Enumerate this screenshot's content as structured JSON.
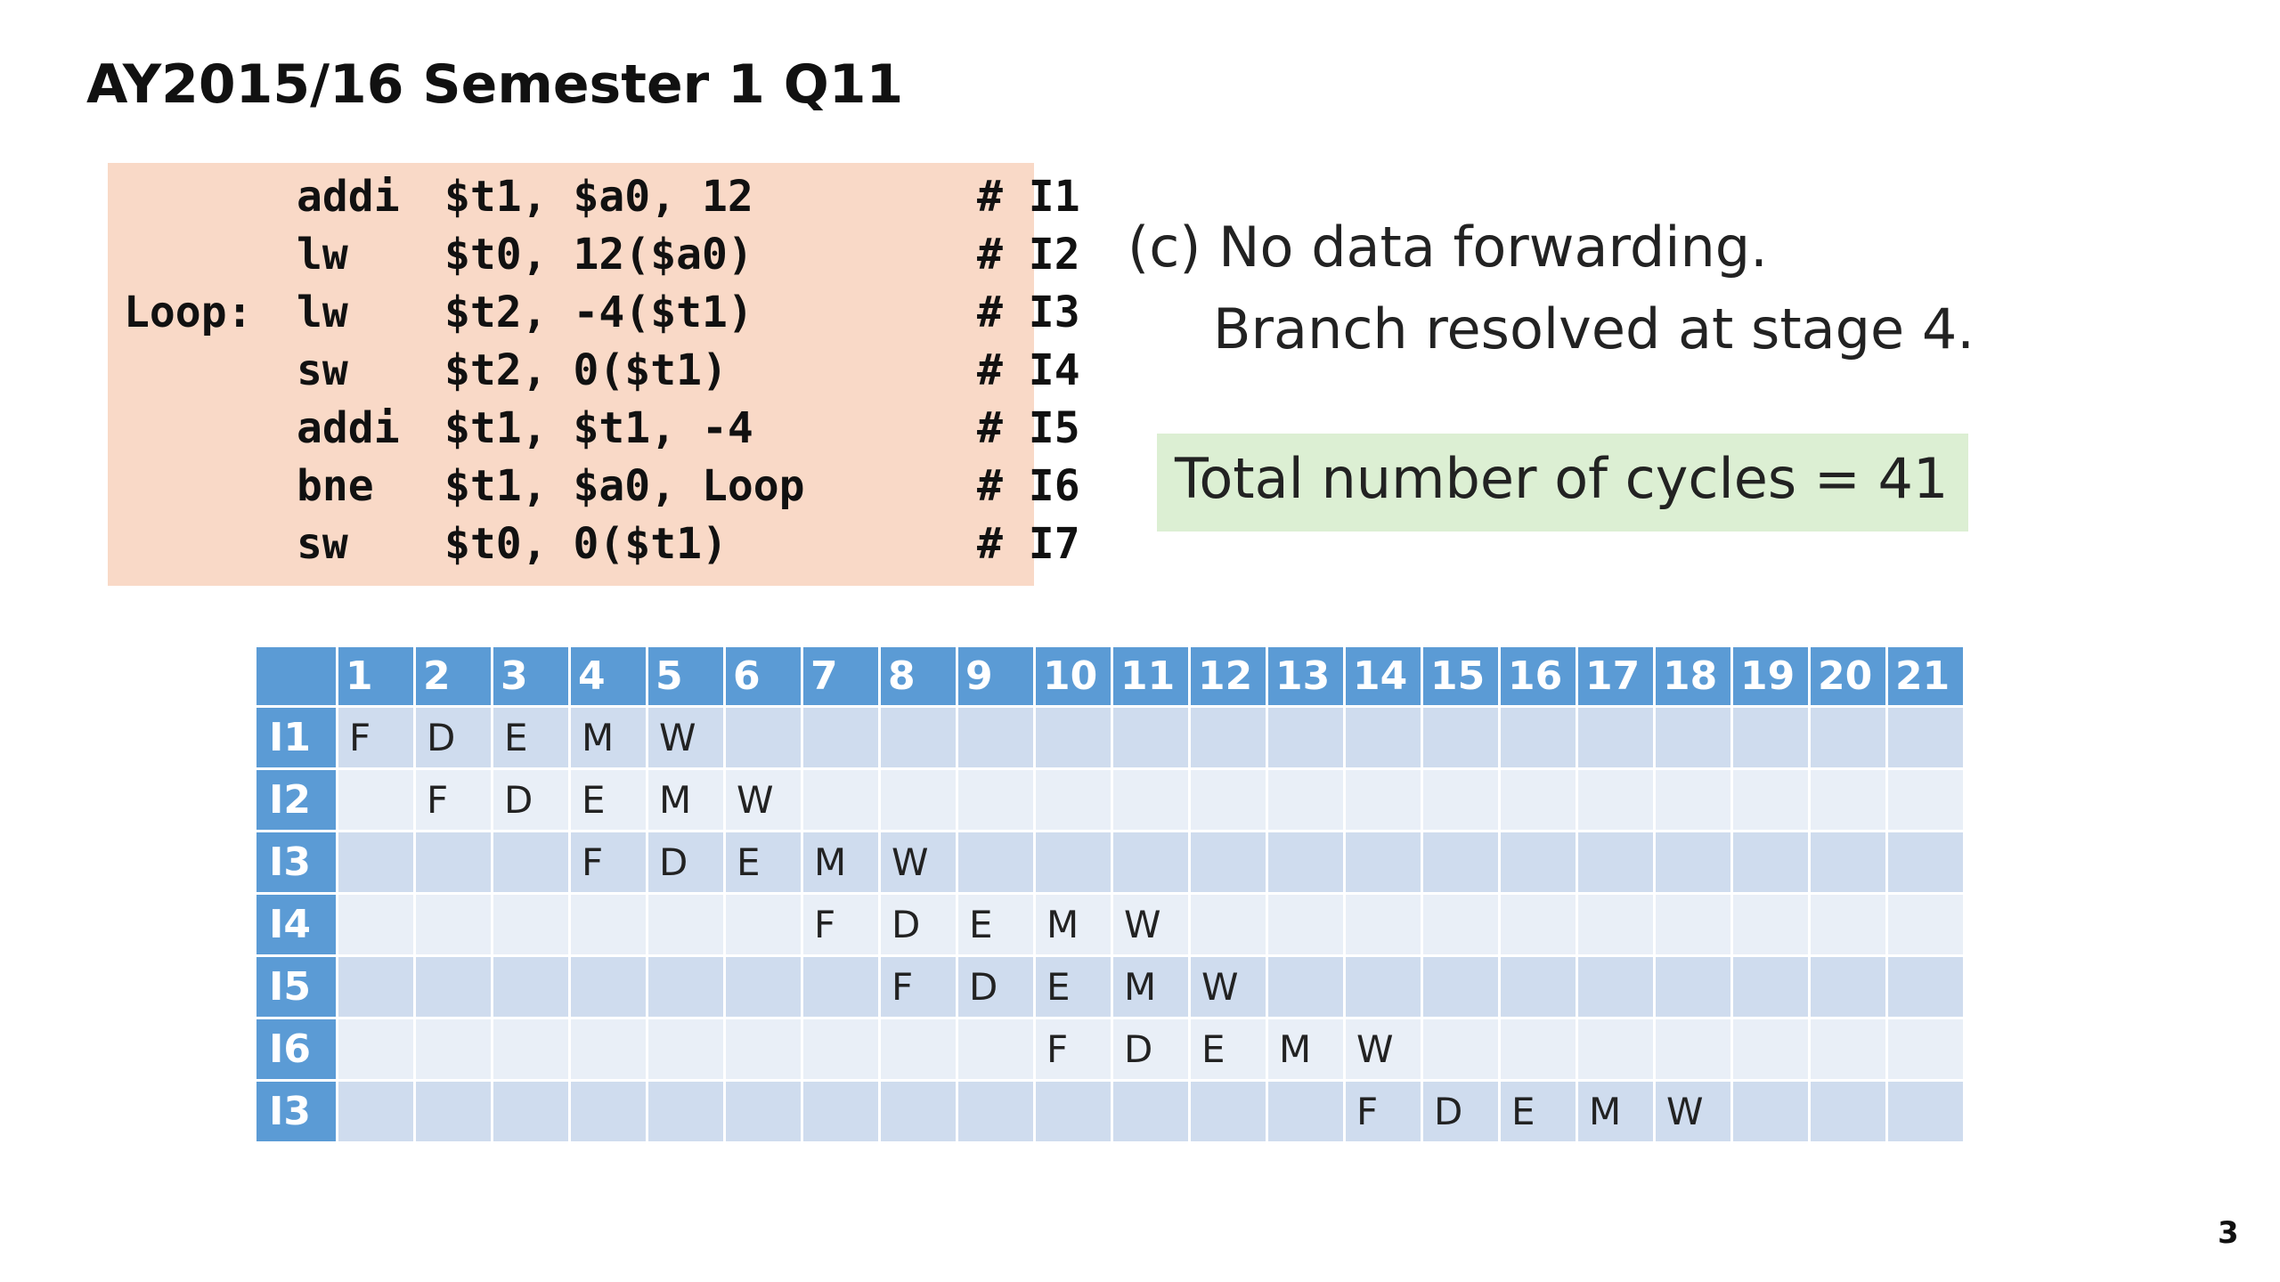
{
  "slide": {
    "title": "AY2015/16 Semester 1 Q11",
    "page_number": "3",
    "code": [
      {
        "label": "",
        "op": "addi",
        "args": "$t1, $a0, 12",
        "comment": "# I1"
      },
      {
        "label": "",
        "op": "lw",
        "args": "$t0, 12($a0)",
        "comment": "# I2"
      },
      {
        "label": "Loop:",
        "op": "lw",
        "args": "$t2, -4($t1)",
        "comment": "# I3"
      },
      {
        "label": "",
        "op": "sw",
        "args": "$t2, 0($t1)",
        "comment": "# I4"
      },
      {
        "label": "",
        "op": "addi",
        "args": "$t1, $t1, -4",
        "comment": "# I5"
      },
      {
        "label": "",
        "op": "bne",
        "args": "$t1, $a0, Loop",
        "comment": "# I6"
      },
      {
        "label": "",
        "op": "sw",
        "args": "$t0, 0($t1)",
        "comment": "# I7"
      }
    ],
    "note": {
      "line1": "(c) No data forwarding.",
      "line2": "Branch resolved at stage 4."
    },
    "total": "Total number of cycles = 41",
    "colors": {
      "code_bg": "#f9d9c7",
      "total_bg": "#dcefd3",
      "table_header": "#5b9bd5",
      "row_dark": "#cfdcee",
      "row_light": "#e9eff7"
    },
    "table": {
      "columns": [
        "1",
        "2",
        "3",
        "4",
        "5",
        "6",
        "7",
        "8",
        "9",
        "10",
        "11",
        "12",
        "13",
        "14",
        "15",
        "16",
        "17",
        "18",
        "19",
        "20",
        "21"
      ],
      "rows": [
        {
          "label": "I1",
          "cells": [
            "F",
            "D",
            "E",
            "M",
            "W",
            "",
            "",
            "",
            "",
            "",
            "",
            "",
            "",
            "",
            "",
            "",
            "",
            "",
            "",
            "",
            ""
          ]
        },
        {
          "label": "I2",
          "cells": [
            "",
            "F",
            "D",
            "E",
            "M",
            "W",
            "",
            "",
            "",
            "",
            "",
            "",
            "",
            "",
            "",
            "",
            "",
            "",
            "",
            "",
            ""
          ]
        },
        {
          "label": "I3",
          "cells": [
            "",
            "",
            "",
            "F",
            "D",
            "E",
            "M",
            "W",
            "",
            "",
            "",
            "",
            "",
            "",
            "",
            "",
            "",
            "",
            "",
            "",
            ""
          ]
        },
        {
          "label": "I4",
          "cells": [
            "",
            "",
            "",
            "",
            "",
            "",
            "F",
            "D",
            "E",
            "M",
            "W",
            "",
            "",
            "",
            "",
            "",
            "",
            "",
            "",
            "",
            ""
          ]
        },
        {
          "label": "I5",
          "cells": [
            "",
            "",
            "",
            "",
            "",
            "",
            "",
            "F",
            "D",
            "E",
            "M",
            "W",
            "",
            "",
            "",
            "",
            "",
            "",
            "",
            "",
            ""
          ]
        },
        {
          "label": "I6",
          "cells": [
            "",
            "",
            "",
            "",
            "",
            "",
            "",
            "",
            "",
            "F",
            "D",
            "E",
            "M",
            "W",
            "",
            "",
            "",
            "",
            "",
            "",
            ""
          ]
        },
        {
          "label": "I3",
          "cells": [
            "",
            "",
            "",
            "",
            "",
            "",
            "",
            "",
            "",
            "",
            "",
            "",
            "",
            "F",
            "D",
            "E",
            "M",
            "W",
            "",
            "",
            ""
          ]
        }
      ]
    }
  }
}
